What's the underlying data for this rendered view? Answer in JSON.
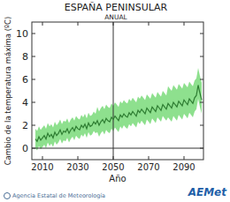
{
  "chart_data": {
    "type": "line",
    "title": "ESPAÑA PENINSULAR",
    "subtitle": "ANUAL",
    "y_label": "Cambio de la temperatura máxima (ºC)",
    "x_label": "Año",
    "source": "Agencia Estatal de Meteorología",
    "logo": "AEMet",
    "x": [
      2006,
      2007,
      2008,
      2009,
      2010,
      2011,
      2012,
      2013,
      2014,
      2015,
      2016,
      2017,
      2018,
      2019,
      2020,
      2021,
      2022,
      2023,
      2024,
      2025,
      2026,
      2027,
      2028,
      2029,
      2030,
      2031,
      2032,
      2033,
      2034,
      2035,
      2036,
      2037,
      2038,
      2039,
      2040,
      2041,
      2042,
      2043,
      2044,
      2045,
      2046,
      2047,
      2048,
      2049,
      2050,
      2051,
      2052,
      2053,
      2054,
      2055,
      2056,
      2057,
      2058,
      2059,
      2060,
      2061,
      2062,
      2063,
      2064,
      2065,
      2066,
      2067,
      2068,
      2069,
      2070,
      2071,
      2072,
      2073,
      2074,
      2075,
      2076,
      2077,
      2078,
      2079,
      2080,
      2081,
      2082,
      2083,
      2084,
      2085,
      2086,
      2087,
      2088,
      2089,
      2090,
      2091,
      2092,
      2093,
      2094,
      2095,
      2096,
      2097,
      2098,
      2099,
      2100
    ],
    "series": [
      {
        "color": "#2e7d32",
        "values": [
          0.8,
          0.6,
          1.0,
          0.7,
          0.9,
          1.1,
          0.8,
          1.3,
          1.0,
          1.2,
          0.9,
          1.4,
          1.1,
          1.3,
          1.6,
          1.2,
          1.5,
          1.4,
          1.7,
          1.3,
          1.6,
          1.8,
          1.5,
          1.9,
          1.7,
          1.6,
          2.0,
          1.8,
          2.1,
          1.7,
          2.2,
          1.9,
          2.0,
          2.3,
          2.1,
          2.4,
          2.0,
          2.3,
          2.5,
          2.2,
          2.6,
          2.4,
          2.3,
          2.7,
          2.5,
          2.8,
          2.6,
          2.4,
          2.9,
          2.7,
          3.0,
          2.8,
          2.7,
          3.1,
          2.9,
          3.2,
          3.0,
          2.8,
          3.3,
          3.1,
          3.4,
          3.2,
          3.0,
          3.5,
          3.3,
          3.1,
          3.6,
          3.4,
          3.2,
          3.7,
          3.5,
          3.3,
          3.8,
          3.6,
          3.4,
          3.9,
          3.7,
          3.5,
          4.0,
          3.8,
          3.6,
          4.1,
          3.9,
          3.7,
          4.2,
          4.0,
          3.8,
          4.3,
          4.1,
          3.9,
          4.4,
          4.6,
          5.5,
          4.8,
          4.2
        ]
      }
    ],
    "band": {
      "color": "#8ee08e",
      "lower": [
        0.0,
        -0.2,
        0.2,
        -0.1,
        0.1,
        0.3,
        0.0,
        0.5,
        0.2,
        0.4,
        0.1,
        0.6,
        0.3,
        0.5,
        0.8,
        0.4,
        0.7,
        0.6,
        0.9,
        0.5,
        0.8,
        1.0,
        0.7,
        1.1,
        0.9,
        0.8,
        1.2,
        1.0,
        1.3,
        0.9,
        1.4,
        1.1,
        1.2,
        1.5,
        1.3,
        1.4,
        1.0,
        1.3,
        1.5,
        1.2,
        1.6,
        1.4,
        1.3,
        1.7,
        1.5,
        1.8,
        1.6,
        1.4,
        1.9,
        1.7,
        2.0,
        1.8,
        1.7,
        2.1,
        1.9,
        2.2,
        2.0,
        1.8,
        2.3,
        2.1,
        2.4,
        2.2,
        2.0,
        2.5,
        2.3,
        2.1,
        2.6,
        2.4,
        2.2,
        2.7,
        2.5,
        2.3,
        2.8,
        2.6,
        2.4,
        2.7,
        2.5,
        2.3,
        2.8,
        2.6,
        2.4,
        2.9,
        2.7,
        2.5,
        3.0,
        2.8,
        2.6,
        3.1,
        2.9,
        2.7,
        3.2,
        3.4,
        4.3,
        3.6,
        3.0
      ],
      "upper": [
        1.7,
        1.5,
        1.9,
        1.6,
        1.8,
        2.0,
        1.7,
        2.2,
        1.9,
        2.1,
        1.8,
        2.3,
        2.0,
        2.2,
        2.5,
        2.1,
        2.4,
        2.3,
        2.6,
        2.2,
        2.5,
        2.7,
        2.4,
        2.8,
        2.6,
        2.5,
        2.9,
        2.7,
        3.0,
        2.6,
        3.1,
        2.8,
        2.9,
        3.2,
        3.0,
        3.6,
        3.2,
        3.5,
        3.7,
        3.4,
        3.8,
        3.6,
        3.5,
        3.9,
        3.7,
        4.0,
        3.8,
        3.6,
        4.1,
        3.9,
        4.2,
        4.0,
        3.9,
        4.3,
        4.1,
        4.4,
        4.2,
        4.0,
        4.5,
        4.3,
        4.6,
        4.4,
        4.2,
        4.7,
        4.5,
        4.3,
        4.8,
        4.6,
        4.4,
        4.9,
        4.7,
        4.5,
        5.0,
        4.8,
        4.6,
        5.4,
        5.2,
        5.0,
        5.5,
        5.3,
        5.1,
        5.6,
        5.4,
        5.2,
        5.7,
        5.5,
        5.3,
        5.8,
        5.6,
        5.4,
        5.9,
        6.1,
        7.0,
        6.3,
        5.7
      ]
    },
    "reference_lines": {
      "x": [
        2050
      ],
      "y": [
        0
      ]
    },
    "xlim": [
      2004,
      2101
    ],
    "ylim": [
      -1,
      11
    ],
    "xticks": [
      2010,
      2030,
      2050,
      2070,
      2090
    ],
    "yticks": [
      0,
      2,
      4,
      6,
      8,
      10
    ],
    "grid": false
  }
}
